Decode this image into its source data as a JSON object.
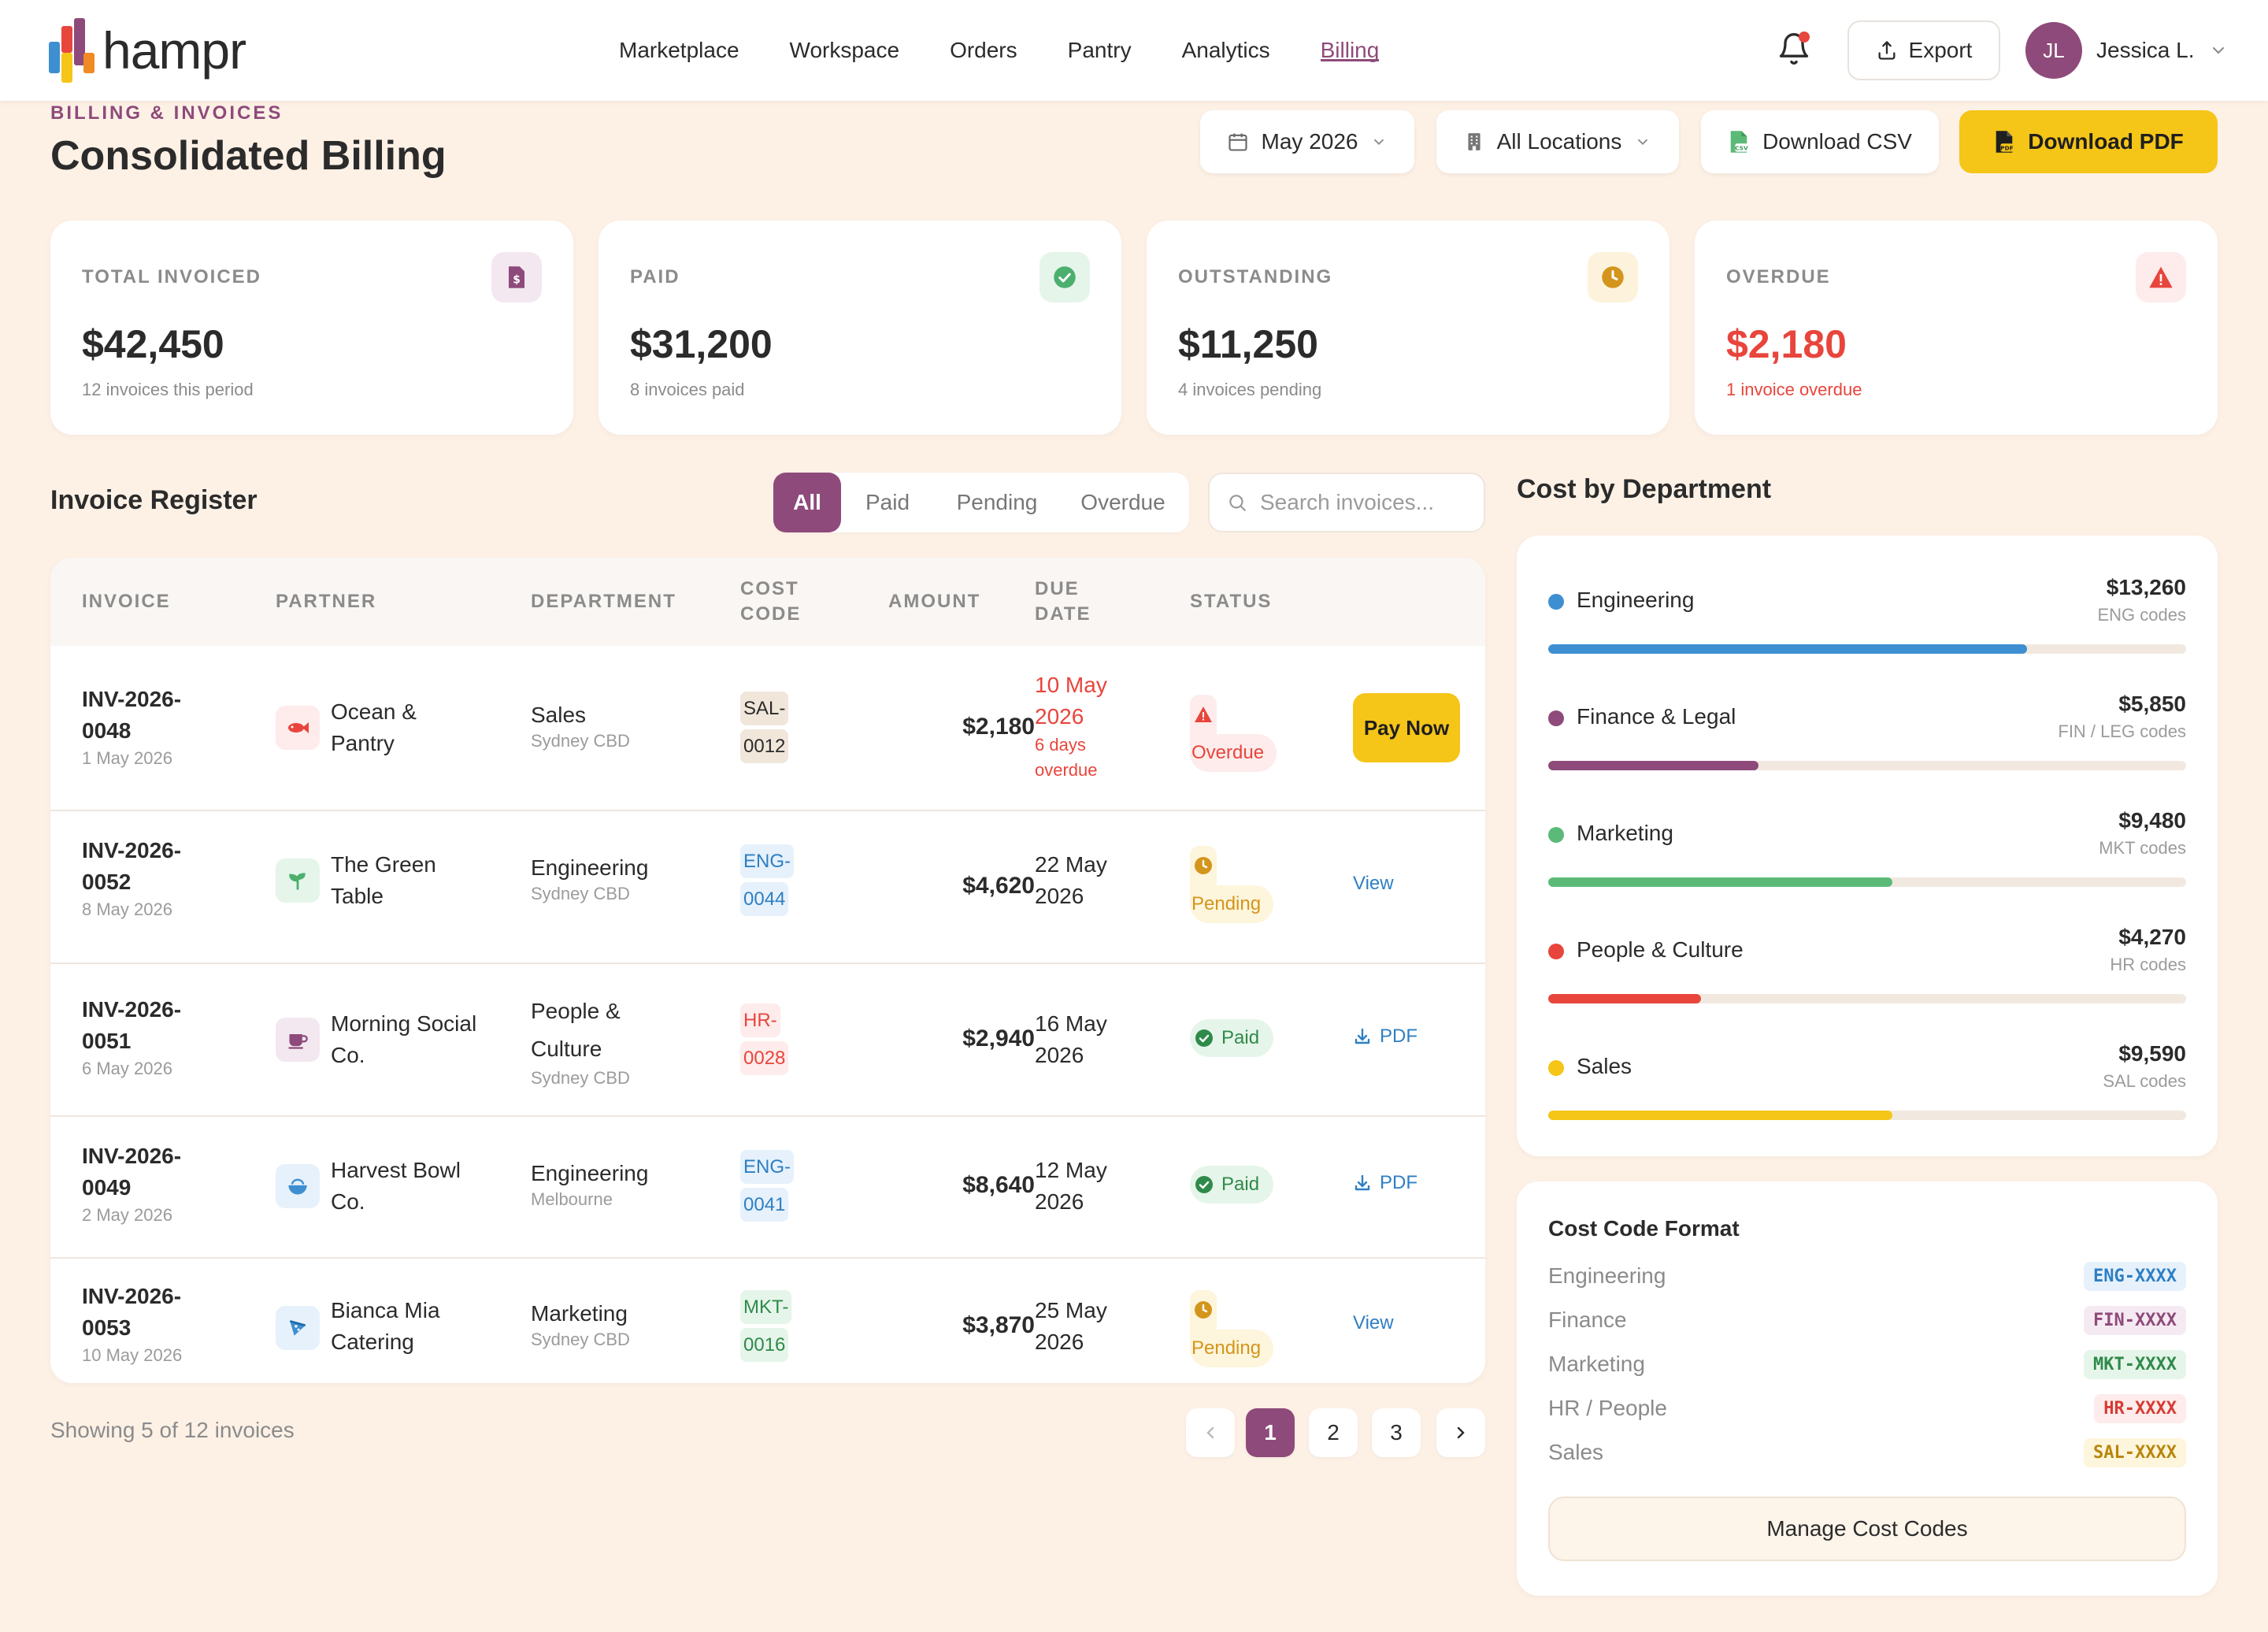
{
  "brand": {
    "name": "hampr"
  },
  "nav": {
    "links": [
      "Marketplace",
      "Workspace",
      "Orders",
      "Pantry",
      "Analytics",
      "Billing"
    ],
    "active": "Billing",
    "export_label": "Export",
    "user": {
      "initials": "JL",
      "name": "Jessica L."
    }
  },
  "header": {
    "eyebrow": "BILLING & INVOICES",
    "title": "Consolidated Billing",
    "month_select": "May 2026",
    "location_select": "All Locations",
    "download_csv": "Download CSV",
    "download_pdf": "Download PDF"
  },
  "stats": [
    {
      "label": "TOTAL INVOICED",
      "value": "$42,450",
      "sub": "12 invoices this period",
      "icon": "invoice-icon",
      "accent": "#8e4a7a"
    },
    {
      "label": "PAID",
      "value": "$31,200",
      "sub": "8 invoices paid",
      "icon": "check-circle-icon",
      "accent": "#4caf6e"
    },
    {
      "label": "OUTSTANDING",
      "value": "$11,250",
      "sub": "4 invoices pending",
      "icon": "clock-icon",
      "accent": "#d4951c"
    },
    {
      "label": "OVERDUE",
      "value": "$2,180",
      "sub": "1 invoice overdue",
      "icon": "warning-icon",
      "accent": "#e8453c"
    }
  ],
  "register": {
    "title": "Invoice Register",
    "filters": [
      "All",
      "Paid",
      "Pending",
      "Overdue"
    ],
    "active_filter": "All",
    "search_placeholder": "Search invoices...",
    "columns": [
      "INVOICE",
      "PARTNER",
      "DEPARTMENT",
      "COST CODE",
      "AMOUNT",
      "DUE DATE",
      "STATUS"
    ],
    "rows": [
      {
        "id": "INV-2026-0048",
        "date": "1 May 2026",
        "partner": "Ocean & Pantry",
        "partner_icon": "fish-icon",
        "department": "Sales",
        "location": "Sydney CBD",
        "cost_code": "SAL-0012",
        "amount": "$2,180",
        "due": "10 May 2026",
        "due_note": "6 days overdue",
        "status": "Overdue",
        "action": "Pay Now"
      },
      {
        "id": "INV-2026-0052",
        "date": "8 May 2026",
        "partner": "The Green Table",
        "partner_icon": "sprout-icon",
        "department": "Engineering",
        "location": "Sydney CBD",
        "cost_code": "ENG-0044",
        "amount": "$4,620",
        "due": "22 May 2026",
        "due_note": "",
        "status": "Pending",
        "action": "View"
      },
      {
        "id": "INV-2026-0051",
        "date": "6 May 2026",
        "partner": "Morning Social Co.",
        "partner_icon": "coffee-icon",
        "department": "People & Culture",
        "location": "Sydney CBD",
        "cost_code": "HR-0028",
        "amount": "$2,940",
        "due": "16 May 2026",
        "due_note": "",
        "status": "Paid",
        "action": "PDF"
      },
      {
        "id": "INV-2026-0049",
        "date": "2 May 2026",
        "partner": "Harvest Bowl Co.",
        "partner_icon": "bowl-icon",
        "department": "Engineering",
        "location": "Melbourne",
        "cost_code": "ENG-0041",
        "amount": "$8,640",
        "due": "12 May 2026",
        "due_note": "",
        "status": "Paid",
        "action": "PDF"
      },
      {
        "id": "INV-2026-0053",
        "date": "10 May 2026",
        "partner": "Bianca Mia Catering",
        "partner_icon": "pizza-icon",
        "department": "Marketing",
        "location": "Sydney CBD",
        "cost_code": "MKT-0016",
        "amount": "$3,870",
        "due": "25 May 2026",
        "due_note": "",
        "status": "Pending",
        "action": "View"
      }
    ],
    "showing": "Showing 5 of 12 invoices",
    "pages": [
      "1",
      "2",
      "3"
    ],
    "current_page": "1"
  },
  "departments": {
    "title": "Cost by Department",
    "items": [
      {
        "name": "Engineering",
        "amount": "$13,260",
        "codes": "ENG codes",
        "color": "#3d8fd1",
        "share": 0.75
      },
      {
        "name": "Finance & Legal",
        "amount": "$5,850",
        "codes": "FIN / LEG codes",
        "color": "#8e4a7a",
        "share": 0.33
      },
      {
        "name": "Marketing",
        "amount": "$9,480",
        "codes": "MKT codes",
        "color": "#5cba78",
        "share": 0.54
      },
      {
        "name": "People & Culture",
        "amount": "$4,270",
        "codes": "HR codes",
        "color": "#e8453c",
        "share": 0.24
      },
      {
        "name": "Sales",
        "amount": "$9,590",
        "codes": "SAL codes",
        "color": "#f5c518",
        "share": 0.54
      }
    ]
  },
  "cost_code_format": {
    "title": "Cost Code Format",
    "rows": [
      {
        "label": "Engineering",
        "code": "ENG-XXXX",
        "color": "#2e7fc3",
        "bg": "#e6f1fb"
      },
      {
        "label": "Finance",
        "code": "FIN-XXXX",
        "color": "#8e4a7a",
        "bg": "#f5eaf2"
      },
      {
        "label": "Marketing",
        "code": "MKT-XXXX",
        "color": "#2f8a4a",
        "bg": "#e6f5ea"
      },
      {
        "label": "HR / People",
        "code": "HR-XXXX",
        "color": "#d63b33",
        "bg": "#fdeceb"
      },
      {
        "label": "Sales",
        "code": "SAL-XXXX",
        "color": "#b8860b",
        "bg": "#fdf5dc"
      }
    ],
    "manage_label": "Manage Cost Codes"
  }
}
